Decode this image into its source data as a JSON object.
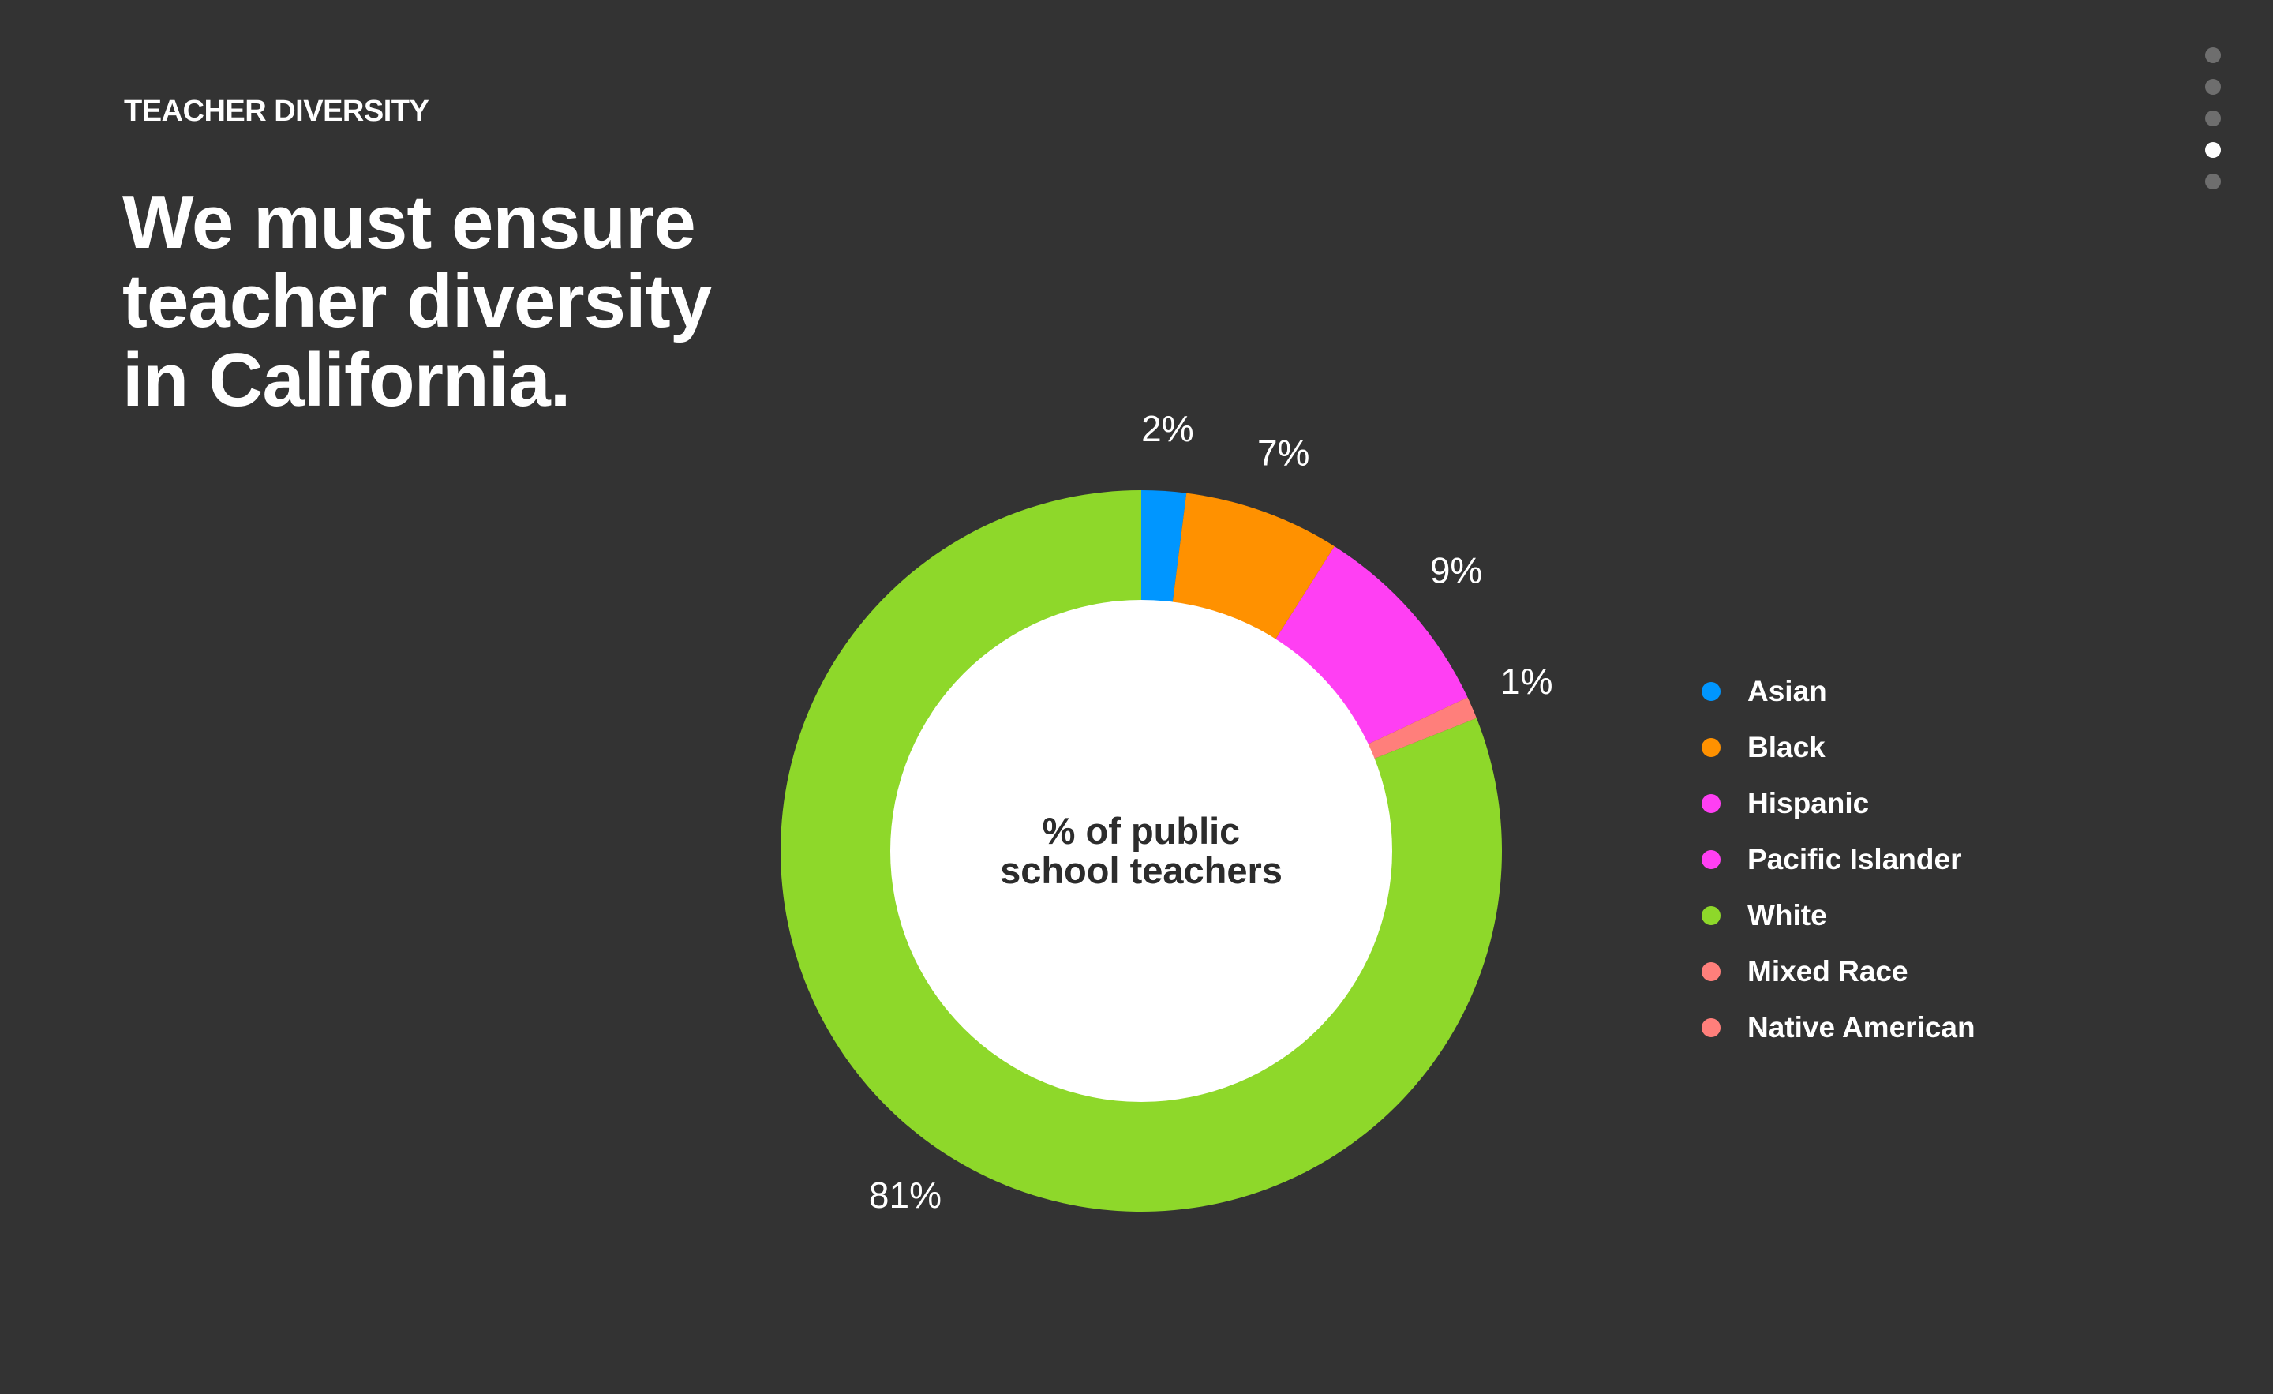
{
  "header": {
    "eyebrow": "TEACHER DIVERSITY",
    "headline": "We must ensure\nteacher diversity\nin California."
  },
  "pager": {
    "count": 5,
    "active_index": 3
  },
  "colors": {
    "background": "#333333",
    "Asian": "#0096ff",
    "Black": "#ff9100",
    "Hispanic": "#ff3ff3",
    "Pacific Islander": "#ff3ff3",
    "White": "#8ed82a",
    "Mixed Race": "#ff7f7b",
    "Native American": "#ff7f7b",
    "center": "#ffffff",
    "center_text": "#2c2c2c"
  },
  "chart_data": {
    "type": "pie",
    "style": "donut",
    "center_label_lines": [
      "% of public",
      "school teachers"
    ],
    "slice_order_note": "clockwise from top",
    "slices": [
      {
        "label": "Asian",
        "value": 2,
        "value_label": "2%",
        "color": "#0096ff"
      },
      {
        "label": "Black",
        "value": 7,
        "value_label": "7%",
        "color": "#ff9100"
      },
      {
        "label": "Hispanic / Pacific Islander",
        "value": 9,
        "value_label": "9%",
        "color": "#ff3ff3"
      },
      {
        "label": "Mixed Race / Native American",
        "value": 1,
        "value_label": "1%",
        "color": "#ff7f7b"
      },
      {
        "label": "White",
        "value": 81,
        "value_label": "81%",
        "color": "#8ed82a"
      }
    ],
    "legend": [
      {
        "label": "Asian",
        "color": "#0096ff"
      },
      {
        "label": "Black",
        "color": "#ff9100"
      },
      {
        "label": "Hispanic",
        "color": "#ff3ff3"
      },
      {
        "label": "Pacific Islander",
        "color": "#ff3ff3"
      },
      {
        "label": "White",
        "color": "#8ed82a"
      },
      {
        "label": "Mixed Race",
        "color": "#ff7f7b"
      },
      {
        "label": "Native American",
        "color": "#ff7f7b"
      }
    ],
    "legend_position": "right"
  }
}
